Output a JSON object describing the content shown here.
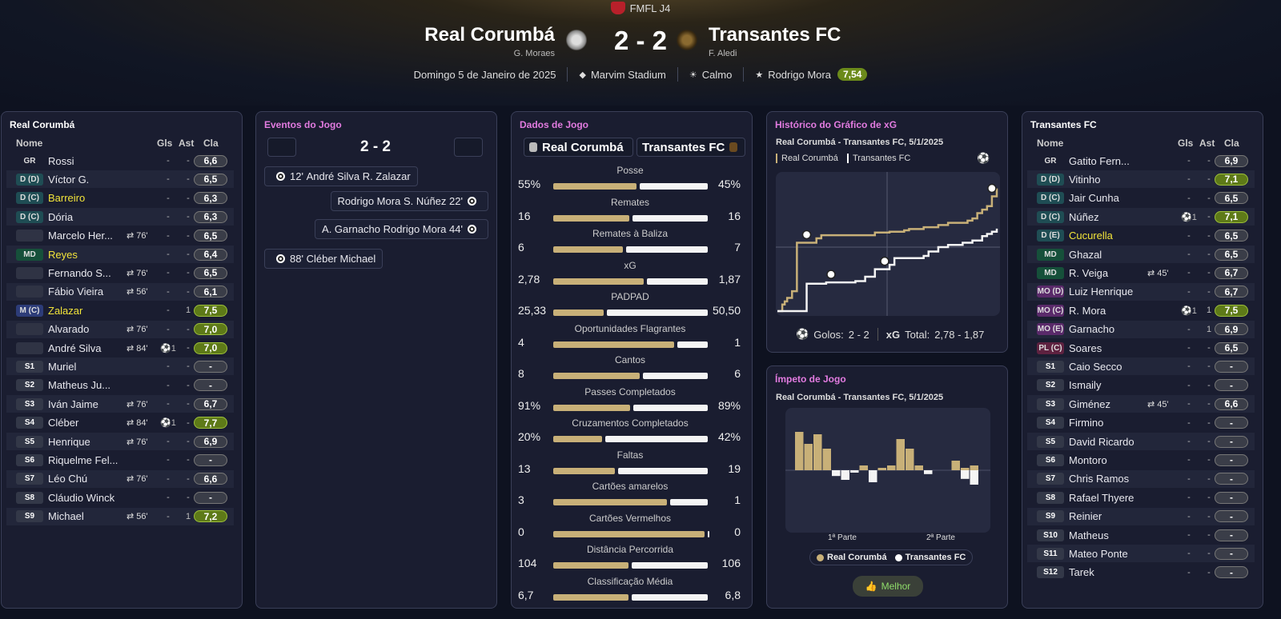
{
  "header": {
    "competition": "FMFL J4",
    "home_team": "Real Corumbá",
    "home_manager": "G. Moraes",
    "away_team": "Transantes FC",
    "away_manager": "F. Aledi",
    "score": "2 - 2",
    "date": "Domingo 5 de Janeiro de 2025",
    "stadium": "Marvim Stadium",
    "weather": "Calmo",
    "motm": "Rodrigo Mora",
    "motm_rating": "7,54"
  },
  "home_panel": {
    "title": "Real Corumbá",
    "cols": {
      "name": "Nome",
      "gls": "Gls",
      "ast": "Ast",
      "cla": "Cla"
    },
    "players": [
      {
        "pos": "GR",
        "pc": "gr",
        "name": "Rossi",
        "sub": "",
        "gls": "-",
        "ast": "-",
        "cla": "6,6",
        "good": false,
        "hl": false
      },
      {
        "pos": "D (D)",
        "pc": "d",
        "name": "Víctor G.",
        "sub": "",
        "gls": "-",
        "ast": "-",
        "cla": "6,5",
        "good": false,
        "hl": false
      },
      {
        "pos": "D (C)",
        "pc": "d",
        "name": "Barreiro",
        "sub": "",
        "gls": "-",
        "ast": "-",
        "cla": "6,3",
        "good": false,
        "hl": true
      },
      {
        "pos": "D (C)",
        "pc": "d",
        "name": "Dória",
        "sub": "",
        "gls": "-",
        "ast": "-",
        "cla": "6,3",
        "good": false,
        "hl": false
      },
      {
        "pos": "",
        "pc": "e",
        "name": "Marcelo Her...",
        "sub": "⇄ 76'",
        "gls": "-",
        "ast": "-",
        "cla": "6,5",
        "good": false,
        "hl": false
      },
      {
        "pos": "MD",
        "pc": "md",
        "name": "Reyes",
        "sub": "",
        "gls": "-",
        "ast": "-",
        "cla": "6,4",
        "good": false,
        "hl": true
      },
      {
        "pos": "",
        "pc": "e",
        "name": "Fernando S...",
        "sub": "⇄ 76'",
        "gls": "-",
        "ast": "-",
        "cla": "6,5",
        "good": false,
        "hl": false
      },
      {
        "pos": "",
        "pc": "e",
        "name": "Fábio Vieira",
        "sub": "⇄ 56'",
        "gls": "-",
        "ast": "-",
        "cla": "6,1",
        "good": false,
        "hl": false
      },
      {
        "pos": "M (C)",
        "pc": "m",
        "name": "Zalazar",
        "sub": "",
        "gls": "-",
        "ast": "1",
        "cla": "7,5",
        "good": true,
        "hl": true
      },
      {
        "pos": "",
        "pc": "e",
        "name": "Alvarado",
        "sub": "⇄ 76'",
        "gls": "-",
        "ast": "-",
        "cla": "7,0",
        "good": true,
        "hl": false
      },
      {
        "pos": "",
        "pc": "e",
        "name": "André Silva",
        "sub": "⇄ 84'",
        "gls": "⚽1",
        "ast": "-",
        "cla": "7,0",
        "good": true,
        "hl": false
      },
      {
        "pos": "S1",
        "pc": "s",
        "name": "Muriel",
        "sub": "",
        "gls": "-",
        "ast": "-",
        "cla": "-",
        "good": false,
        "hl": false
      },
      {
        "pos": "S2",
        "pc": "s",
        "name": "Matheus Ju...",
        "sub": "",
        "gls": "-",
        "ast": "-",
        "cla": "-",
        "good": false,
        "hl": false
      },
      {
        "pos": "S3",
        "pc": "s",
        "name": "Iván Jaime",
        "sub": "⇄ 76'",
        "gls": "-",
        "ast": "-",
        "cla": "6,7",
        "good": false,
        "hl": false
      },
      {
        "pos": "S4",
        "pc": "s",
        "name": "Cléber",
        "sub": "⇄ 84'",
        "gls": "⚽1",
        "ast": "-",
        "cla": "7,7",
        "good": true,
        "hl": false
      },
      {
        "pos": "S5",
        "pc": "s",
        "name": "Henrique",
        "sub": "⇄ 76'",
        "gls": "-",
        "ast": "-",
        "cla": "6,9",
        "good": false,
        "hl": false
      },
      {
        "pos": "S6",
        "pc": "s",
        "name": "Riquelme Fel...",
        "sub": "",
        "gls": "-",
        "ast": "-",
        "cla": "-",
        "good": false,
        "hl": false
      },
      {
        "pos": "S7",
        "pc": "s",
        "name": "Léo Chú",
        "sub": "⇄ 76'",
        "gls": "-",
        "ast": "-",
        "cla": "6,6",
        "good": false,
        "hl": false
      },
      {
        "pos": "S8",
        "pc": "s",
        "name": "Cláudio Winck",
        "sub": "",
        "gls": "-",
        "ast": "-",
        "cla": "-",
        "good": false,
        "hl": false
      },
      {
        "pos": "S9",
        "pc": "s",
        "name": "Michael",
        "sub": "⇄ 56'",
        "gls": "-",
        "ast": "1",
        "cla": "7,2",
        "good": true,
        "hl": false
      }
    ]
  },
  "away_panel": {
    "title": "Transantes FC",
    "cols": {
      "name": "Nome",
      "gls": "Gls",
      "ast": "Ast",
      "cla": "Cla"
    },
    "players": [
      {
        "pos": "GR",
        "pc": "gr",
        "name": "Gatito Fern...",
        "sub": "",
        "gls": "-",
        "ast": "-",
        "cla": "6,9",
        "good": false,
        "hl": false
      },
      {
        "pos": "D (D)",
        "pc": "d",
        "name": "Vitinho",
        "sub": "",
        "gls": "-",
        "ast": "-",
        "cla": "7,1",
        "good": true,
        "hl": false
      },
      {
        "pos": "D (C)",
        "pc": "d",
        "name": "Jair Cunha",
        "sub": "",
        "gls": "-",
        "ast": "-",
        "cla": "6,5",
        "good": false,
        "hl": false
      },
      {
        "pos": "D (C)",
        "pc": "d",
        "name": "Núñez",
        "sub": "",
        "gls": "⚽1",
        "ast": "-",
        "cla": "7,1",
        "good": true,
        "hl": false
      },
      {
        "pos": "D (E)",
        "pc": "d",
        "name": "Cucurella",
        "sub": "",
        "gls": "-",
        "ast": "-",
        "cla": "6,5",
        "good": false,
        "hl": true
      },
      {
        "pos": "MD",
        "pc": "md",
        "name": "Ghazal",
        "sub": "",
        "gls": "-",
        "ast": "-",
        "cla": "6,5",
        "good": false,
        "hl": false
      },
      {
        "pos": "MD",
        "pc": "md",
        "name": "R. Veiga",
        "sub": "⇄ 45'",
        "gls": "-",
        "ast": "-",
        "cla": "6,7",
        "good": false,
        "hl": false
      },
      {
        "pos": "MO (D)",
        "pc": "mo",
        "name": "Luiz Henrique",
        "sub": "",
        "gls": "-",
        "ast": "-",
        "cla": "6,7",
        "good": false,
        "hl": false
      },
      {
        "pos": "MO (C)",
        "pc": "mo",
        "name": "R. Mora",
        "sub": "",
        "gls": "⚽1",
        "ast": "1",
        "cla": "7,5",
        "good": true,
        "hl": false
      },
      {
        "pos": "MO (E)",
        "pc": "mo",
        "name": "Garnacho",
        "sub": "",
        "gls": "-",
        "ast": "1",
        "cla": "6,9",
        "good": false,
        "hl": false
      },
      {
        "pos": "PL (C)",
        "pc": "pl",
        "name": "Soares",
        "sub": "",
        "gls": "-",
        "ast": "-",
        "cla": "6,5",
        "good": false,
        "hl": false
      },
      {
        "pos": "S1",
        "pc": "s",
        "name": "Caio Secco",
        "sub": "",
        "gls": "-",
        "ast": "-",
        "cla": "-",
        "good": false,
        "hl": false
      },
      {
        "pos": "S2",
        "pc": "s",
        "name": "Ismaily",
        "sub": "",
        "gls": "-",
        "ast": "-",
        "cla": "-",
        "good": false,
        "hl": false
      },
      {
        "pos": "S3",
        "pc": "s",
        "name": "Giménez",
        "sub": "⇄ 45'",
        "gls": "-",
        "ast": "-",
        "cla": "6,6",
        "good": false,
        "hl": false
      },
      {
        "pos": "S4",
        "pc": "s",
        "name": "Firmino",
        "sub": "",
        "gls": "-",
        "ast": "-",
        "cla": "-",
        "good": false,
        "hl": false
      },
      {
        "pos": "S5",
        "pc": "s",
        "name": "David Ricardo",
        "sub": "",
        "gls": "-",
        "ast": "-",
        "cla": "-",
        "good": false,
        "hl": false
      },
      {
        "pos": "S6",
        "pc": "s",
        "name": "Montoro",
        "sub": "",
        "gls": "-",
        "ast": "-",
        "cla": "-",
        "good": false,
        "hl": false
      },
      {
        "pos": "S7",
        "pc": "s",
        "name": "Chris Ramos",
        "sub": "",
        "gls": "-",
        "ast": "-",
        "cla": "-",
        "good": false,
        "hl": false
      },
      {
        "pos": "S8",
        "pc": "s",
        "name": "Rafael Thyere",
        "sub": "",
        "gls": "-",
        "ast": "-",
        "cla": "-",
        "good": false,
        "hl": false
      },
      {
        "pos": "S9",
        "pc": "s",
        "name": "Reinier",
        "sub": "",
        "gls": "-",
        "ast": "-",
        "cla": "-",
        "good": false,
        "hl": false
      },
      {
        "pos": "S10",
        "pc": "s",
        "name": "Matheus",
        "sub": "",
        "gls": "-",
        "ast": "-",
        "cla": "-",
        "good": false,
        "hl": false
      },
      {
        "pos": "S11",
        "pc": "s",
        "name": "Mateo Ponte",
        "sub": "",
        "gls": "-",
        "ast": "-",
        "cla": "-",
        "good": false,
        "hl": false
      },
      {
        "pos": "S12",
        "pc": "s",
        "name": "Tarek",
        "sub": "",
        "gls": "-",
        "ast": "-",
        "cla": "-",
        "good": false,
        "hl": false
      }
    ]
  },
  "events": {
    "title": "Eventos do Jogo",
    "score": "2 - 2",
    "items": [
      {
        "side": "home",
        "minute": "12'",
        "scorer": "André Silva",
        "assist": "R. Zalazar"
      },
      {
        "side": "away",
        "minute": "22'",
        "scorer": "S. Núñez",
        "assist": "Rodrigo Mora"
      },
      {
        "side": "away",
        "minute": "44'",
        "scorer": "Rodrigo Mora",
        "assist": "A. Garnacho"
      },
      {
        "side": "home",
        "minute": "88'",
        "scorer": "Cléber",
        "assist": "Michael"
      }
    ]
  },
  "stats": {
    "title": "Dados de Jogo",
    "home": "Real Corumbá",
    "away": "Transantes FC",
    "rows": [
      {
        "label": "Posse",
        "h": "55%",
        "a": "45%",
        "hv": 55,
        "av": 45
      },
      {
        "label": "Remates",
        "h": "16",
        "a": "16",
        "hv": 16,
        "av": 16
      },
      {
        "label": "Remates à Baliza",
        "h": "6",
        "a": "7",
        "hv": 6,
        "av": 7
      },
      {
        "label": "xG",
        "h": "2,78",
        "a": "1,87",
        "hv": 2.78,
        "av": 1.87
      },
      {
        "label": "PADPAD",
        "h": "25,33",
        "a": "50,50",
        "hv": 25.33,
        "av": 50.5
      },
      {
        "label": "Oportunidades Flagrantes",
        "h": "4",
        "a": "1",
        "hv": 4,
        "av": 1
      },
      {
        "label": "Cantos",
        "h": "8",
        "a": "6",
        "hv": 8,
        "av": 6
      },
      {
        "label": "Passes Completados",
        "h": "91%",
        "a": "89%",
        "hv": 91,
        "av": 89
      },
      {
        "label": "Cruzamentos Completados",
        "h": "20%",
        "a": "42%",
        "hv": 20,
        "av": 42
      },
      {
        "label": "Faltas",
        "h": "13",
        "a": "19",
        "hv": 13,
        "av": 19
      },
      {
        "label": "Cartões amarelos",
        "h": "3",
        "a": "1",
        "hv": 3,
        "av": 1
      },
      {
        "label": "Cartões Vermelhos",
        "h": "0",
        "a": "0",
        "hv": 0,
        "av": 0
      },
      {
        "label": "Distância Percorrida",
        "h": "104",
        "a": "106",
        "hv": 104,
        "av": 106
      },
      {
        "label": "Classificação Média",
        "h": "6,7",
        "a": "6,8",
        "hv": 6.7,
        "av": 6.8
      }
    ]
  },
  "xg_panel": {
    "title": "Histórico do Gráfico de xG",
    "subtitle": "Real Corumbá - Transantes FC, 5/1/2025",
    "legend_home": "Real Corumbá",
    "legend_away": "Transantes FC",
    "goals_label": "Golos:",
    "goals_value": "2 - 2",
    "xg_label": "xG",
    "total_label": "Total:",
    "total_value": "2,78 - 1,87"
  },
  "momentum_panel": {
    "title": "Ímpeto de Jogo",
    "subtitle": "Real Corumbá - Transantes FC, 5/1/2025",
    "half1": "1ª Parte",
    "half2": "2ª Parte",
    "legend_home": "Real Corumbá",
    "legend_away": "Transantes FC",
    "button": "Melhor"
  },
  "colors": {
    "home": "#c8b078",
    "away": "#f4f4f4",
    "good_rating": "#5e7a18",
    "pink_title": "#e27be0"
  },
  "chart_data": [
    {
      "type": "line",
      "xlim": [
        0,
        90
      ],
      "ylim": [
        0,
        2.9
      ],
      "series": [
        {
          "name": "Real Corumbá",
          "x": [
            0,
            2,
            3,
            4,
            6,
            8,
            16,
            18,
            24,
            40,
            46,
            52,
            54,
            60,
            66,
            70,
            78,
            80,
            82,
            84,
            86,
            88,
            90
          ],
          "y": [
            0,
            0.15,
            0.22,
            0.3,
            0.45,
            1.55,
            1.65,
            1.72,
            1.72,
            1.78,
            1.8,
            1.83,
            1.86,
            1.9,
            1.95,
            2.0,
            2.05,
            2.1,
            2.22,
            2.3,
            2.38,
            2.6,
            2.78
          ]
        },
        {
          "name": "Transantes FC",
          "x": [
            0,
            10,
            12,
            20,
            32,
            36,
            40,
            46,
            48,
            60,
            62,
            66,
            70,
            76,
            80,
            84,
            86,
            88,
            90
          ],
          "y": [
            0,
            0,
            0.62,
            0.65,
            0.68,
            0.78,
            0.95,
            1.05,
            1.2,
            1.25,
            1.35,
            1.45,
            1.5,
            1.55,
            1.6,
            1.7,
            1.75,
            1.8,
            1.87
          ]
        }
      ],
      "goals": [
        {
          "team": "Real Corumbá",
          "minute": 12
        },
        {
          "team": "Transantes FC",
          "minute": 22
        },
        {
          "team": "Transantes FC",
          "minute": 44
        },
        {
          "team": "Real Corumbá",
          "minute": 88
        }
      ]
    },
    {
      "type": "bar",
      "xlabels": [
        "1ª Parte",
        "2ª Parte"
      ],
      "series": [
        {
          "name": "Real Corumbá",
          "values": [
            0.8,
            0.55,
            0.75,
            0.45,
            0,
            0,
            0,
            0.1,
            0,
            0.05,
            0.1,
            0.65,
            0.45,
            0.1,
            0,
            0,
            0,
            0.2,
            0.05,
            0.1
          ]
        },
        {
          "name": "Transantes FC",
          "values": [
            0,
            0,
            0,
            0,
            0.12,
            0.2,
            0.05,
            0,
            0.25,
            0,
            0,
            0,
            0,
            0,
            0.08,
            0,
            0,
            0,
            0.18,
            0.3
          ]
        }
      ]
    }
  ]
}
